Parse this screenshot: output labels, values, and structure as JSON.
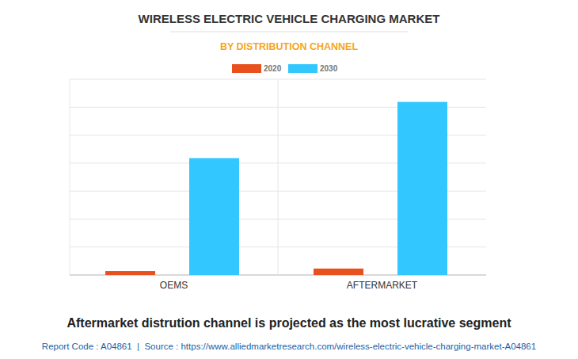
{
  "chart_data": {
    "type": "bar",
    "title": "WIRELESS ELECTRIC VEHICLE CHARGING MARKET",
    "subtitle": "BY DISTRIBUTION CHANNEL",
    "categories": [
      "OEMS",
      "AFTERMARKET"
    ],
    "series": [
      {
        "name": "2020",
        "color": "#e8501e",
        "values": [
          0.14,
          0.23
        ]
      },
      {
        "name": "2030",
        "color": "#33c7ff",
        "values": [
          4.18,
          6.19
        ]
      }
    ],
    "ylim": [
      0,
      7
    ],
    "yticks": [
      0,
      1,
      2,
      3,
      4,
      5,
      6,
      7
    ],
    "grid": true,
    "tick_labels": "x",
    "legend": "top",
    "annotations": [
      "Aftermarket distrution channel is projected as the most lucrative segment",
      "Report Code : A04861  |  Source : https://www.alliedmarketresearch.com/wireless-electric-vehicle-charging-market-A04861"
    ]
  }
}
